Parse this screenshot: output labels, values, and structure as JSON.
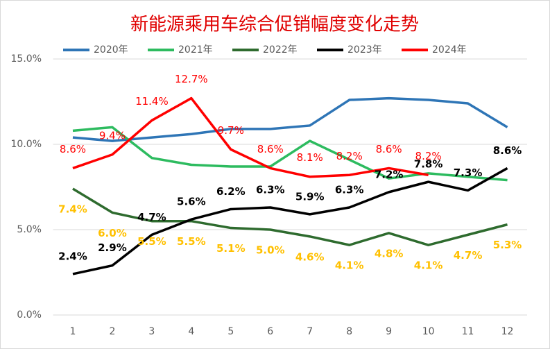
{
  "chart_data": {
    "type": "line",
    "title": "新能源乘用车综合促销幅度变化走势",
    "categories": [
      "1",
      "2",
      "3",
      "4",
      "5",
      "6",
      "7",
      "8",
      "9",
      "10",
      "11",
      "12"
    ],
    "ylim": [
      0,
      15
    ],
    "yticks": [
      {
        "value": 0,
        "label": "0.0%"
      },
      {
        "value": 5,
        "label": "5.0%"
      },
      {
        "value": 10,
        "label": "10.0%"
      },
      {
        "value": 15,
        "label": "15.0%"
      }
    ],
    "grid": true,
    "legend": "top",
    "series": [
      {
        "name": "2020年",
        "color": "#2e75b6",
        "values": [
          10.4,
          10.2,
          10.4,
          10.6,
          10.9,
          10.9,
          11.1,
          12.6,
          12.7,
          12.6,
          12.4,
          11.0
        ]
      },
      {
        "name": "2021年",
        "color": "#2dbb5f",
        "values": [
          10.8,
          11.0,
          9.2,
          8.8,
          8.7,
          8.7,
          10.2,
          9.1,
          8.0,
          8.3,
          8.1,
          7.9
        ]
      },
      {
        "name": "2022年",
        "color": "#2e6b2e",
        "values": [
          7.4,
          6.0,
          5.5,
          5.5,
          5.1,
          5.0,
          4.6,
          4.1,
          4.8,
          4.1,
          4.7,
          5.3
        ],
        "value_labels": [
          "7.4%",
          "6.0%",
          "5.5%",
          "5.5%",
          "5.1%",
          "5.0%",
          "4.6%",
          "4.1%",
          "4.8%",
          "4.1%",
          "4.7%",
          "5.3%"
        ],
        "label_color": "#ffc000"
      },
      {
        "name": "2023年",
        "color": "#000000",
        "values": [
          2.4,
          2.9,
          4.7,
          5.6,
          6.2,
          6.3,
          5.9,
          6.3,
          7.2,
          7.8,
          7.3,
          8.6
        ],
        "value_labels": [
          "2.4%",
          "2.9%",
          "4.7%",
          "5.6%",
          "6.2%",
          "6.3%",
          "5.9%",
          "6.3%",
          "7.2%",
          "7.8%",
          "7.3%",
          "8.6%"
        ],
        "label_color": "#000000"
      },
      {
        "name": "2024年",
        "color": "#ff0000",
        "values": [
          8.6,
          9.4,
          11.4,
          12.7,
          9.7,
          8.6,
          8.1,
          8.2,
          8.6,
          8.2,
          null,
          null
        ],
        "value_labels": [
          "8.6%",
          "9.4%",
          "11.4%",
          "12.7%",
          "9.7%",
          "8.6%",
          "8.1%",
          "8.2%",
          "8.6%",
          "8.2%",
          null,
          null
        ],
        "label_color": "#ff0000"
      }
    ]
  }
}
